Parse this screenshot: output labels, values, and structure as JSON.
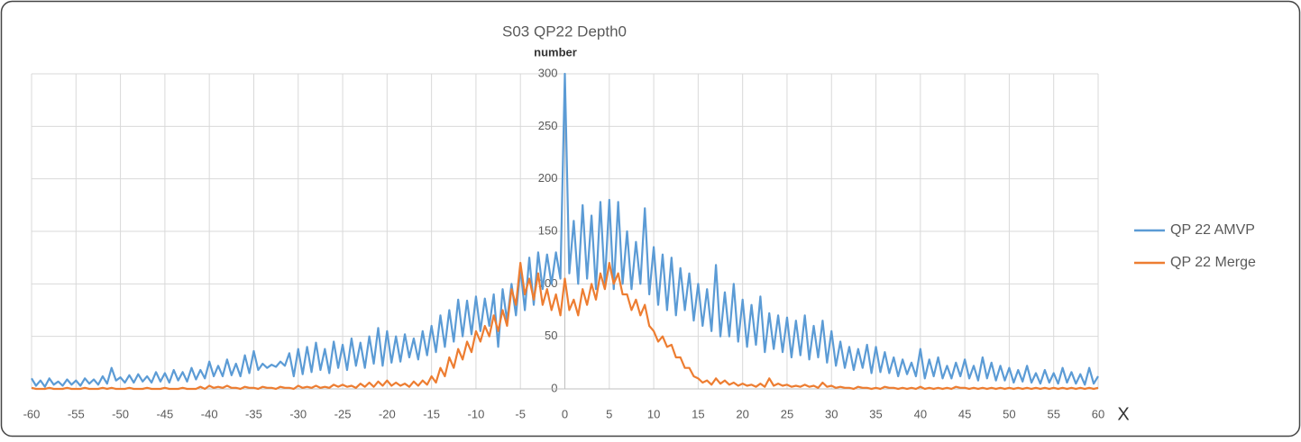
{
  "chart_data": {
    "type": "line",
    "title": "S03 QP22 Depth0",
    "y_label": "number",
    "x_label": "X",
    "x": [
      -60,
      -59.5,
      -59,
      -58.5,
      -58,
      -57.5,
      -57,
      -56.5,
      -56,
      -55.5,
      -55,
      -54.5,
      -54,
      -53.5,
      -53,
      -52.5,
      -52,
      -51.5,
      -51,
      -50.5,
      -50,
      -49.5,
      -49,
      -48.5,
      -48,
      -47.5,
      -47,
      -46.5,
      -46,
      -45.5,
      -45,
      -44.5,
      -44,
      -43.5,
      -43,
      -42.5,
      -42,
      -41.5,
      -41,
      -40.5,
      -40,
      -39.5,
      -39,
      -38.5,
      -38,
      -37.5,
      -37,
      -36.5,
      -36,
      -35.5,
      -35,
      -34.5,
      -34,
      -33.5,
      -33,
      -32.5,
      -32,
      -31.5,
      -31,
      -30.5,
      -30,
      -29.5,
      -29,
      -28.5,
      -28,
      -27.5,
      -27,
      -26.5,
      -26,
      -25.5,
      -25,
      -24.5,
      -24,
      -23.5,
      -23,
      -22.5,
      -22,
      -21.5,
      -21,
      -20.5,
      -20,
      -19.5,
      -19,
      -18.5,
      -18,
      -17.5,
      -17,
      -16.5,
      -16,
      -15.5,
      -15,
      -14.5,
      -14,
      -13.5,
      -13,
      -12.5,
      -12,
      -11.5,
      -11,
      -10.5,
      -10,
      -9.5,
      -9,
      -8.5,
      -8,
      -7.5,
      -7,
      -6.5,
      -6,
      -5.5,
      -5,
      -4.5,
      -4,
      -3.5,
      -3,
      -2.5,
      -2,
      -1.5,
      -1,
      -0.5,
      0,
      0.5,
      1,
      1.5,
      2,
      2.5,
      3,
      3.5,
      4,
      4.5,
      5,
      5.5,
      6,
      6.5,
      7,
      7.5,
      8,
      8.5,
      9,
      9.5,
      10,
      10.5,
      11,
      11.5,
      12,
      12.5,
      13,
      13.5,
      14,
      14.5,
      15,
      15.5,
      16,
      16.5,
      17,
      17.5,
      18,
      18.5,
      19,
      19.5,
      20,
      20.5,
      21,
      21.5,
      22,
      22.5,
      23,
      23.5,
      24,
      24.5,
      25,
      25.5,
      26,
      26.5,
      27,
      27.5,
      28,
      28.5,
      29,
      29.5,
      30,
      30.5,
      31,
      31.5,
      32,
      32.5,
      33,
      33.5,
      34,
      34.5,
      35,
      35.5,
      36,
      36.5,
      37,
      37.5,
      38,
      38.5,
      39,
      39.5,
      40,
      40.5,
      41,
      41.5,
      42,
      42.5,
      43,
      43.5,
      44,
      44.5,
      45,
      45.5,
      46,
      46.5,
      47,
      47.5,
      48,
      48.5,
      49,
      49.5,
      50,
      50.5,
      51,
      51.5,
      52,
      52.5,
      53,
      53.5,
      54,
      54.5,
      55,
      55.5,
      56,
      56.5,
      57,
      57.5,
      58,
      58.5,
      59,
      59.5,
      60
    ],
    "series": [
      {
        "name": "QP 22 AMVP",
        "color": "#5b9bd5",
        "values": [
          10,
          3,
          8,
          2,
          10,
          4,
          7,
          3,
          9,
          4,
          8,
          3,
          10,
          5,
          9,
          4,
          12,
          5,
          20,
          8,
          11,
          6,
          13,
          6,
          14,
          7,
          12,
          6,
          16,
          7,
          15,
          6,
          18,
          8,
          16,
          7,
          20,
          9,
          18,
          10,
          26,
          12,
          22,
          12,
          28,
          13,
          24,
          12,
          32,
          15,
          36,
          18,
          24,
          20,
          23,
          21,
          26,
          22,
          34,
          12,
          38,
          14,
          40,
          16,
          44,
          18,
          38,
          15,
          45,
          20,
          42,
          18,
          48,
          22,
          44,
          20,
          50,
          24,
          58,
          22,
          55,
          25,
          50,
          26,
          52,
          30,
          48,
          28,
          55,
          32,
          60,
          35,
          70,
          40,
          75,
          45,
          85,
          50,
          84,
          52,
          88,
          55,
          86,
          60,
          90,
          40,
          95,
          65,
          100,
          70,
          115,
          75,
          125,
          80,
          130,
          95,
          128,
          100,
          130,
          105,
          300,
          110,
          160,
          100,
          175,
          105,
          165,
          95,
          178,
          100,
          180,
          95,
          178,
          100,
          150,
          95,
          140,
          100,
          172,
          90,
          135,
          80,
          128,
          75,
          125,
          70,
          115,
          75,
          110,
          65,
          100,
          60,
          95,
          55,
          118,
          50,
          92,
          50,
          100,
          45,
          85,
          40,
          80,
          42,
          88,
          35,
          72,
          38,
          70,
          35,
          68,
          30,
          65,
          32,
          70,
          28,
          60,
          30,
          65,
          25,
          55,
          22,
          45,
          20,
          40,
          18,
          38,
          20,
          42,
          15,
          40,
          16,
          35,
          15,
          30,
          12,
          28,
          14,
          25,
          12,
          38,
          10,
          28,
          12,
          30,
          10,
          22,
          10,
          25,
          12,
          28,
          10,
          22,
          8,
          30,
          10,
          25,
          8,
          22,
          8,
          20,
          6,
          18,
          7,
          22,
          6,
          15,
          5,
          18,
          6,
          15,
          5,
          20,
          6,
          16,
          5,
          14,
          4,
          20,
          5,
          12
        ]
      },
      {
        "name": "QP 22 Merge",
        "color": "#ed7d31",
        "values": [
          1,
          0,
          0,
          0,
          1,
          0,
          0,
          0,
          1,
          0,
          0,
          0,
          1,
          0,
          0,
          0,
          1,
          0,
          1,
          0,
          0,
          0,
          1,
          0,
          0,
          0,
          1,
          0,
          0,
          0,
          1,
          0,
          0,
          0,
          1,
          0,
          0,
          0,
          2,
          0,
          3,
          1,
          2,
          1,
          3,
          1,
          1,
          0,
          2,
          1,
          1,
          0,
          2,
          1,
          1,
          0,
          2,
          1,
          1,
          0,
          3,
          1,
          2,
          1,
          3,
          1,
          2,
          1,
          4,
          2,
          4,
          2,
          3,
          1,
          5,
          2,
          6,
          2,
          7,
          3,
          8,
          3,
          6,
          3,
          5,
          2,
          7,
          3,
          8,
          4,
          12,
          6,
          20,
          12,
          30,
          20,
          38,
          28,
          45,
          35,
          55,
          45,
          60,
          50,
          70,
          55,
          75,
          60,
          95,
          80,
          120,
          90,
          105,
          85,
          110,
          80,
          95,
          75,
          90,
          70,
          105,
          75,
          85,
          70,
          95,
          80,
          100,
          85,
          110,
          95,
          120,
          100,
          110,
          90,
          90,
          75,
          85,
          70,
          80,
          60,
          55,
          45,
          50,
          40,
          42,
          30,
          30,
          20,
          20,
          12,
          10,
          6,
          8,
          4,
          10,
          5,
          8,
          4,
          6,
          3,
          5,
          3,
          4,
          2,
          5,
          2,
          10,
          3,
          5,
          3,
          4,
          2,
          3,
          2,
          4,
          2,
          3,
          1,
          6,
          2,
          3,
          1,
          2,
          1,
          1,
          0,
          2,
          1,
          1,
          0,
          1,
          0,
          2,
          1,
          1,
          0,
          1,
          0,
          1,
          0,
          2,
          0,
          1,
          0,
          1,
          0,
          1,
          0,
          2,
          1,
          1,
          0,
          1,
          0,
          1,
          0,
          1,
          0,
          1,
          0,
          1,
          0,
          1,
          0,
          1,
          0,
          1,
          0,
          1,
          0,
          1,
          0,
          1,
          0,
          1,
          0,
          1,
          0,
          1,
          0,
          1
        ]
      }
    ],
    "xlim": [
      -60,
      60
    ],
    "xticks": [
      -60,
      -55,
      -50,
      -45,
      -40,
      -35,
      -30,
      -25,
      -20,
      -15,
      -10,
      -5,
      0,
      5,
      10,
      15,
      20,
      25,
      30,
      35,
      40,
      45,
      50,
      55,
      60
    ],
    "ylim": [
      0,
      300
    ],
    "yticks": [
      0,
      50,
      100,
      150,
      200,
      250,
      300
    ],
    "grid": true,
    "legend": "right"
  }
}
